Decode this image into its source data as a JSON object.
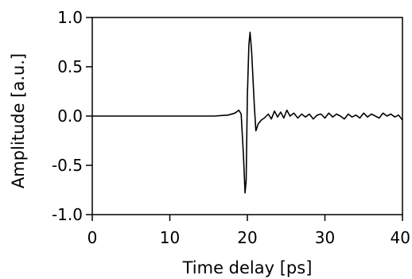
{
  "chart_data": {
    "type": "line",
    "title": "",
    "xlabel": "Time delay [ps]",
    "ylabel": "Amplitude [a.u.]",
    "xlim": [
      0,
      40
    ],
    "ylim": [
      -1.0,
      1.0
    ],
    "x_ticks": [
      "0",
      "10",
      "20",
      "30",
      "40"
    ],
    "y_ticks": [
      "1.0",
      "0.5",
      "0.0",
      "-0.5",
      "-1.0"
    ],
    "grid": false,
    "series": [
      {
        "color": "#000000",
        "points": [
          [
            0,
            0.0
          ],
          [
            5,
            0.0
          ],
          [
            10,
            0.0
          ],
          [
            14,
            0.0
          ],
          [
            15.8,
            0.0
          ],
          [
            16.5,
            0.005
          ],
          [
            17.5,
            0.01
          ],
          [
            18.4,
            0.03
          ],
          [
            18.9,
            0.06
          ],
          [
            19.2,
            0.02
          ],
          [
            19.5,
            -0.4
          ],
          [
            19.7,
            -0.78
          ],
          [
            19.85,
            -0.65
          ],
          [
            20.0,
            0.2
          ],
          [
            20.2,
            0.72
          ],
          [
            20.35,
            0.85
          ],
          [
            20.55,
            0.65
          ],
          [
            20.9,
            0.1
          ],
          [
            21.1,
            -0.15
          ],
          [
            21.4,
            -0.08
          ],
          [
            21.8,
            -0.04
          ],
          [
            22.2,
            -0.02
          ],
          [
            22.7,
            0.02
          ],
          [
            23.1,
            -0.03
          ],
          [
            23.5,
            0.05
          ],
          [
            23.9,
            -0.01
          ],
          [
            24.3,
            0.04
          ],
          [
            24.7,
            -0.02
          ],
          [
            25.1,
            0.06
          ],
          [
            25.5,
            0.0
          ],
          [
            26.0,
            0.03
          ],
          [
            26.5,
            -0.02
          ],
          [
            27.0,
            0.02
          ],
          [
            27.5,
            -0.01
          ],
          [
            28.0,
            0.02
          ],
          [
            28.5,
            -0.03
          ],
          [
            29.0,
            0.01
          ],
          [
            29.5,
            0.02
          ],
          [
            30.0,
            -0.02
          ],
          [
            30.5,
            0.03
          ],
          [
            31.0,
            -0.01
          ],
          [
            31.5,
            0.02
          ],
          [
            32.0,
            0.0
          ],
          [
            32.5,
            -0.03
          ],
          [
            33.0,
            0.02
          ],
          [
            33.5,
            -0.01
          ],
          [
            34.0,
            0.01
          ],
          [
            34.5,
            -0.02
          ],
          [
            35.0,
            0.03
          ],
          [
            35.5,
            -0.01
          ],
          [
            36.0,
            0.02
          ],
          [
            36.5,
            0.0
          ],
          [
            37.0,
            -0.02
          ],
          [
            37.5,
            0.03
          ],
          [
            38.0,
            0.0
          ],
          [
            38.5,
            0.02
          ],
          [
            39.0,
            -0.01
          ],
          [
            39.5,
            0.01
          ],
          [
            40.0,
            -0.04
          ]
        ]
      }
    ]
  }
}
